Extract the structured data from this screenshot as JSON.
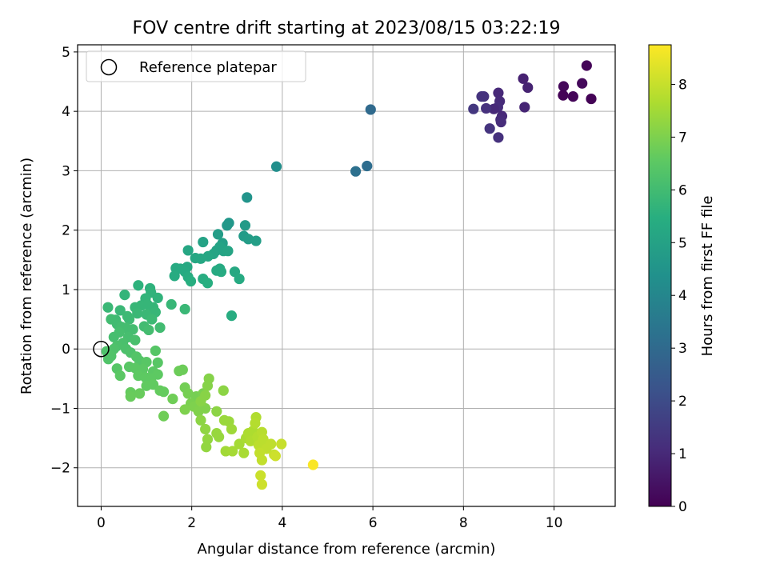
{
  "chart_data": {
    "type": "scatter",
    "title": "FOV centre drift starting at 2023/08/15 03:22:19",
    "xlabel": "Angular distance from reference (arcmin)",
    "ylabel": "Rotation from reference (arcmin)",
    "xlim": [
      -0.52,
      11.35
    ],
    "ylim": [
      -2.65,
      5.12
    ],
    "xticks": [
      "0",
      "2",
      "4",
      "6",
      "8",
      "10"
    ],
    "yticks": [
      "−2",
      "−1",
      "0",
      "1",
      "2",
      "3",
      "4",
      "5"
    ],
    "grid": true,
    "legend": {
      "placement": "upper-left",
      "entries": [
        "Reference platepar"
      ]
    },
    "reference_point": {
      "x": 0,
      "y": 0
    },
    "colorbar": {
      "label": "Hours from first FF file",
      "range": [
        0,
        8.75
      ],
      "ticks": [
        "0",
        "1",
        "2",
        "3",
        "4",
        "5",
        "6",
        "7",
        "8"
      ],
      "colormap": [
        "#440154",
        "#472d7b",
        "#3b528b",
        "#2c728e",
        "#21918c",
        "#28ae80",
        "#5ec962",
        "#addc30",
        "#fde725"
      ]
    },
    "points": [
      {
        "x": 10.72,
        "y": 4.77,
        "c": 0.1
      },
      {
        "x": 10.62,
        "y": 4.47,
        "c": 0.2
      },
      {
        "x": 10.21,
        "y": 4.42,
        "c": 0.15
      },
      {
        "x": 10.42,
        "y": 4.25,
        "c": 0.1
      },
      {
        "x": 10.2,
        "y": 4.27,
        "c": 0.05
      },
      {
        "x": 10.82,
        "y": 4.21,
        "c": 0.05
      },
      {
        "x": 9.32,
        "y": 4.55,
        "c": 0.8
      },
      {
        "x": 9.42,
        "y": 4.4,
        "c": 0.85
      },
      {
        "x": 9.35,
        "y": 4.07,
        "c": 0.9
      },
      {
        "x": 8.77,
        "y": 4.31,
        "c": 1.0
      },
      {
        "x": 8.8,
        "y": 4.17,
        "c": 1.05
      },
      {
        "x": 8.76,
        "y": 4.07,
        "c": 1.1
      },
      {
        "x": 8.67,
        "y": 4.04,
        "c": 1.0
      },
      {
        "x": 8.5,
        "y": 4.05,
        "c": 1.2
      },
      {
        "x": 8.4,
        "y": 4.25,
        "c": 1.3
      },
      {
        "x": 8.45,
        "y": 4.25,
        "c": 1.25
      },
      {
        "x": 8.22,
        "y": 4.04,
        "c": 1.4
      },
      {
        "x": 8.85,
        "y": 3.92,
        "c": 1.0
      },
      {
        "x": 8.82,
        "y": 3.86,
        "c": 1.05
      },
      {
        "x": 8.83,
        "y": 3.82,
        "c": 1.1
      },
      {
        "x": 8.58,
        "y": 3.71,
        "c": 1.3
      },
      {
        "x": 8.77,
        "y": 3.56,
        "c": 1.2
      },
      {
        "x": 5.95,
        "y": 4.03,
        "c": 3.0
      },
      {
        "x": 5.87,
        "y": 3.08,
        "c": 3.1
      },
      {
        "x": 5.62,
        "y": 2.99,
        "c": 3.2
      },
      {
        "x": 3.87,
        "y": 3.07,
        "c": 4.3
      },
      {
        "x": 3.22,
        "y": 2.55,
        "c": 4.5
      },
      {
        "x": 2.82,
        "y": 2.12,
        "c": 4.6
      },
      {
        "x": 2.78,
        "y": 2.08,
        "c": 4.65
      },
      {
        "x": 3.18,
        "y": 2.08,
        "c": 4.7
      },
      {
        "x": 2.58,
        "y": 1.93,
        "c": 4.8
      },
      {
        "x": 3.15,
        "y": 1.9,
        "c": 4.75
      },
      {
        "x": 3.25,
        "y": 1.85,
        "c": 4.8
      },
      {
        "x": 3.42,
        "y": 1.82,
        "c": 4.85
      },
      {
        "x": 2.68,
        "y": 1.78,
        "c": 4.9
      },
      {
        "x": 2.25,
        "y": 1.8,
        "c": 5.0
      },
      {
        "x": 2.55,
        "y": 1.66,
        "c": 5.0
      },
      {
        "x": 2.62,
        "y": 1.72,
        "c": 5.05
      },
      {
        "x": 2.7,
        "y": 1.65,
        "c": 5.05
      },
      {
        "x": 2.8,
        "y": 1.65,
        "c": 5.1
      },
      {
        "x": 2.48,
        "y": 1.6,
        "c": 5.1
      },
      {
        "x": 2.36,
        "y": 1.56,
        "c": 5.15
      },
      {
        "x": 2.2,
        "y": 1.52,
        "c": 5.2
      },
      {
        "x": 2.08,
        "y": 1.53,
        "c": 5.2
      },
      {
        "x": 1.92,
        "y": 1.66,
        "c": 5.15
      },
      {
        "x": 1.65,
        "y": 1.36,
        "c": 5.3
      },
      {
        "x": 1.9,
        "y": 1.38,
        "c": 5.25
      },
      {
        "x": 1.75,
        "y": 1.35,
        "c": 5.3
      },
      {
        "x": 1.85,
        "y": 1.3,
        "c": 5.3
      },
      {
        "x": 1.62,
        "y": 1.23,
        "c": 5.35
      },
      {
        "x": 1.92,
        "y": 1.21,
        "c": 5.4
      },
      {
        "x": 1.98,
        "y": 1.14,
        "c": 5.45
      },
      {
        "x": 2.25,
        "y": 1.18,
        "c": 5.4
      },
      {
        "x": 2.35,
        "y": 1.11,
        "c": 5.45
      },
      {
        "x": 2.55,
        "y": 1.32,
        "c": 5.3
      },
      {
        "x": 2.65,
        "y": 1.3,
        "c": 5.35
      },
      {
        "x": 2.62,
        "y": 1.35,
        "c": 5.3
      },
      {
        "x": 2.95,
        "y": 1.3,
        "c": 5.25
      },
      {
        "x": 3.05,
        "y": 1.18,
        "c": 5.3
      },
      {
        "x": 2.88,
        "y": 0.56,
        "c": 5.4
      },
      {
        "x": 0.82,
        "y": 1.07,
        "c": 5.6
      },
      {
        "x": 1.08,
        "y": 1.02,
        "c": 5.6
      },
      {
        "x": 1.1,
        "y": 0.95,
        "c": 5.65
      },
      {
        "x": 0.52,
        "y": 0.91,
        "c": 5.7
      },
      {
        "x": 1.25,
        "y": 0.86,
        "c": 5.65
      },
      {
        "x": 0.98,
        "y": 0.85,
        "c": 5.7
      },
      {
        "x": 1.02,
        "y": 0.75,
        "c": 5.75
      },
      {
        "x": 0.88,
        "y": 0.73,
        "c": 5.75
      },
      {
        "x": 1.15,
        "y": 0.7,
        "c": 5.75
      },
      {
        "x": 0.75,
        "y": 0.7,
        "c": 5.8
      },
      {
        "x": 0.15,
        "y": 0.7,
        "c": 5.85
      },
      {
        "x": 0.42,
        "y": 0.65,
        "c": 5.85
      },
      {
        "x": 0.8,
        "y": 0.6,
        "c": 5.85
      },
      {
        "x": 1.2,
        "y": 0.62,
        "c": 5.8
      },
      {
        "x": 1.0,
        "y": 0.58,
        "c": 5.85
      },
      {
        "x": 1.12,
        "y": 0.5,
        "c": 5.9
      },
      {
        "x": 0.62,
        "y": 0.5,
        "c": 5.95
      },
      {
        "x": 0.58,
        "y": 0.55,
        "c": 5.9
      },
      {
        "x": 0.32,
        "y": 0.49,
        "c": 5.95
      },
      {
        "x": 0.22,
        "y": 0.5,
        "c": 6.0
      },
      {
        "x": 0.35,
        "y": 0.42,
        "c": 6.0
      },
      {
        "x": 0.45,
        "y": 0.37,
        "c": 6.05
      },
      {
        "x": 0.55,
        "y": 0.35,
        "c": 6.05
      },
      {
        "x": 0.95,
        "y": 0.38,
        "c": 6.0
      },
      {
        "x": 1.05,
        "y": 0.32,
        "c": 6.05
      },
      {
        "x": 1.3,
        "y": 0.36,
        "c": 6.0
      },
      {
        "x": 1.55,
        "y": 0.75,
        "c": 5.8
      },
      {
        "x": 1.85,
        "y": 0.67,
        "c": 5.85
      },
      {
        "x": 0.7,
        "y": 0.33,
        "c": 6.05
      },
      {
        "x": 0.28,
        "y": 0.2,
        "c": 6.1
      },
      {
        "x": 0.4,
        "y": 0.28,
        "c": 6.1
      },
      {
        "x": 0.6,
        "y": 0.2,
        "c": 6.1
      },
      {
        "x": 0.75,
        "y": 0.15,
        "c": 6.15
      },
      {
        "x": 0.48,
        "y": 0.1,
        "c": 6.15
      },
      {
        "x": 0.35,
        "y": 0.05,
        "c": 6.2
      },
      {
        "x": 0.55,
        "y": 0.0,
        "c": 6.2
      },
      {
        "x": 0.12,
        "y": -0.04,
        "c": 6.25
      },
      {
        "x": 0.28,
        "y": 0.0,
        "c": 6.25
      },
      {
        "x": 0.65,
        "y": -0.06,
        "c": 6.25
      },
      {
        "x": 0.22,
        "y": -0.12,
        "c": 6.3
      },
      {
        "x": 0.16,
        "y": -0.17,
        "c": 6.3
      },
      {
        "x": 0.78,
        "y": -0.13,
        "c": 6.35
      },
      {
        "x": 0.85,
        "y": -0.2,
        "c": 6.35
      },
      {
        "x": 1.2,
        "y": -0.03,
        "c": 6.4
      },
      {
        "x": 1.0,
        "y": -0.22,
        "c": 6.45
      },
      {
        "x": 1.25,
        "y": -0.23,
        "c": 6.45
      },
      {
        "x": 0.35,
        "y": -0.33,
        "c": 6.4
      },
      {
        "x": 0.62,
        "y": -0.3,
        "c": 6.45
      },
      {
        "x": 0.75,
        "y": -0.32,
        "c": 6.5
      },
      {
        "x": 0.92,
        "y": -0.34,
        "c": 6.5
      },
      {
        "x": 1.15,
        "y": -0.38,
        "c": 6.5
      },
      {
        "x": 0.42,
        "y": -0.45,
        "c": 6.5
      },
      {
        "x": 0.82,
        "y": -0.45,
        "c": 6.55
      },
      {
        "x": 0.98,
        "y": -0.48,
        "c": 6.55
      },
      {
        "x": 1.25,
        "y": -0.43,
        "c": 6.55
      },
      {
        "x": 1.1,
        "y": -0.5,
        "c": 6.55
      },
      {
        "x": 1.0,
        "y": -0.62,
        "c": 6.6
      },
      {
        "x": 1.15,
        "y": -0.6,
        "c": 6.6
      },
      {
        "x": 1.3,
        "y": -0.7,
        "c": 6.65
      },
      {
        "x": 1.38,
        "y": -0.72,
        "c": 6.65
      },
      {
        "x": 0.65,
        "y": -0.73,
        "c": 6.65
      },
      {
        "x": 0.65,
        "y": -0.8,
        "c": 6.7
      },
      {
        "x": 0.85,
        "y": -0.75,
        "c": 6.7
      },
      {
        "x": 1.38,
        "y": -1.13,
        "c": 6.8
      },
      {
        "x": 1.58,
        "y": -0.84,
        "c": 6.8
      },
      {
        "x": 1.72,
        "y": -0.37,
        "c": 6.75
      },
      {
        "x": 1.8,
        "y": -0.35,
        "c": 6.75
      },
      {
        "x": 1.85,
        "y": -0.65,
        "c": 6.85
      },
      {
        "x": 1.92,
        "y": -0.75,
        "c": 6.9
      },
      {
        "x": 2.1,
        "y": -0.8,
        "c": 6.9
      },
      {
        "x": 2.25,
        "y": -0.75,
        "c": 6.95
      },
      {
        "x": 1.98,
        "y": -0.92,
        "c": 6.95
      },
      {
        "x": 2.05,
        "y": -0.97,
        "c": 7.0
      },
      {
        "x": 1.85,
        "y": -1.02,
        "c": 7.0
      },
      {
        "x": 2.15,
        "y": -1.05,
        "c": 7.05
      },
      {
        "x": 2.3,
        "y": -1.0,
        "c": 7.05
      },
      {
        "x": 2.38,
        "y": -0.5,
        "c": 7.1
      },
      {
        "x": 2.35,
        "y": -0.62,
        "c": 7.1
      },
      {
        "x": 2.3,
        "y": -0.78,
        "c": 7.15
      },
      {
        "x": 2.2,
        "y": -0.88,
        "c": 7.15
      },
      {
        "x": 2.2,
        "y": -1.2,
        "c": 7.2
      },
      {
        "x": 2.55,
        "y": -1.05,
        "c": 7.2
      },
      {
        "x": 2.7,
        "y": -0.7,
        "c": 7.2
      },
      {
        "x": 2.3,
        "y": -1.35,
        "c": 7.25
      },
      {
        "x": 2.35,
        "y": -1.52,
        "c": 7.3
      },
      {
        "x": 2.32,
        "y": -1.65,
        "c": 7.3
      },
      {
        "x": 2.55,
        "y": -1.42,
        "c": 7.35
      },
      {
        "x": 2.6,
        "y": -1.48,
        "c": 7.35
      },
      {
        "x": 2.72,
        "y": -1.2,
        "c": 7.4
      },
      {
        "x": 2.82,
        "y": -1.22,
        "c": 7.4
      },
      {
        "x": 2.88,
        "y": -1.35,
        "c": 7.45
      },
      {
        "x": 2.75,
        "y": -1.72,
        "c": 7.5
      },
      {
        "x": 2.9,
        "y": -1.72,
        "c": 7.55
      },
      {
        "x": 3.05,
        "y": -1.6,
        "c": 7.55
      },
      {
        "x": 3.15,
        "y": -1.75,
        "c": 7.6
      },
      {
        "x": 3.2,
        "y": -1.5,
        "c": 7.6
      },
      {
        "x": 3.25,
        "y": -1.42,
        "c": 7.65
      },
      {
        "x": 3.35,
        "y": -1.38,
        "c": 7.65
      },
      {
        "x": 3.3,
        "y": -1.55,
        "c": 7.7
      },
      {
        "x": 3.42,
        "y": -1.15,
        "c": 7.7
      },
      {
        "x": 3.4,
        "y": -1.25,
        "c": 7.75
      },
      {
        "x": 3.45,
        "y": -1.48,
        "c": 7.75
      },
      {
        "x": 3.55,
        "y": -1.4,
        "c": 7.8
      },
      {
        "x": 3.48,
        "y": -1.62,
        "c": 7.85
      },
      {
        "x": 3.58,
        "y": -1.52,
        "c": 7.85
      },
      {
        "x": 3.65,
        "y": -1.68,
        "c": 7.9
      },
      {
        "x": 3.75,
        "y": -1.6,
        "c": 7.9
      },
      {
        "x": 3.5,
        "y": -1.75,
        "c": 7.95
      },
      {
        "x": 3.55,
        "y": -1.87,
        "c": 7.95
      },
      {
        "x": 3.82,
        "y": -1.78,
        "c": 8.0
      },
      {
        "x": 3.85,
        "y": -1.8,
        "c": 8.1
      },
      {
        "x": 3.98,
        "y": -1.6,
        "c": 8.0
      },
      {
        "x": 3.52,
        "y": -2.13,
        "c": 8.05
      },
      {
        "x": 3.55,
        "y": -2.28,
        "c": 8.1
      },
      {
        "x": 4.68,
        "y": -1.95,
        "c": 8.7
      }
    ]
  }
}
